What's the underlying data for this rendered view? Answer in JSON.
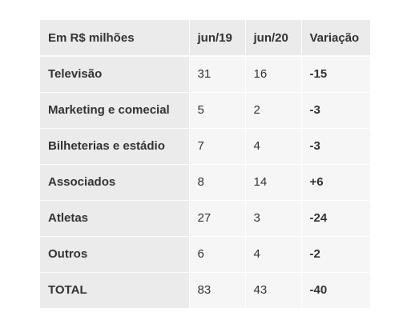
{
  "table": {
    "headers": [
      "Em R$ milhões",
      "jun/19",
      "jun/20",
      "Variação"
    ],
    "rows": [
      [
        "Televisão",
        "31",
        "16",
        "-15"
      ],
      [
        "Marketing e comecial",
        "5",
        "2",
        "-3"
      ],
      [
        "Bilheterias e estádio",
        "7",
        "4",
        "-3"
      ],
      [
        "Associados",
        "8",
        "14",
        "+6"
      ],
      [
        "Atletas",
        "27",
        "3",
        "-24"
      ],
      [
        "Outros",
        "6",
        "4",
        "-2"
      ],
      [
        "TOTAL",
        "83",
        "43",
        "-40"
      ]
    ]
  }
}
